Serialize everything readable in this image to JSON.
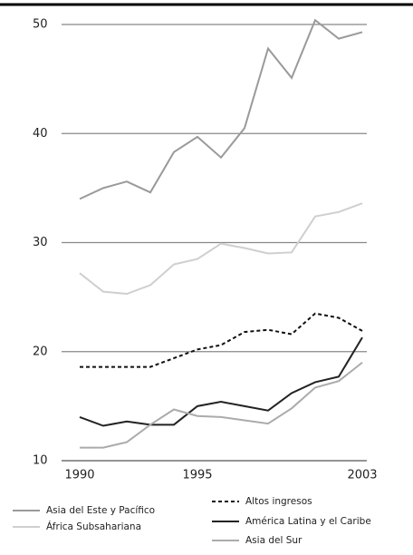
{
  "chart_data": {
    "type": "line",
    "categories": [
      "1990",
      null,
      null,
      null,
      null,
      "1995",
      null,
      null,
      null,
      null,
      null,
      null,
      "2003"
    ],
    "ylim": [
      10,
      50
    ],
    "yticks": [
      10,
      20,
      30,
      40,
      50
    ],
    "grid": true,
    "series": [
      {
        "name": "Asia del Este y Pacífico",
        "color": "#9a9a9a",
        "style": "solid",
        "values": [
          34.0,
          35.0,
          35.6,
          34.6,
          38.3,
          39.7,
          37.8,
          40.5,
          47.8,
          45.1,
          50.4,
          48.7,
          49.3
        ]
      },
      {
        "name": "África Subsahariana",
        "color": "#cfcfcf",
        "style": "solid",
        "values": [
          27.2,
          25.5,
          25.3,
          26.1,
          28.0,
          28.5,
          29.9,
          29.5,
          29.0,
          29.1,
          32.4,
          32.8,
          33.6
        ]
      },
      {
        "name": "Altos ingresos",
        "color": "#111111",
        "style": "dashed",
        "values": [
          18.6,
          18.6,
          18.6,
          18.6,
          19.4,
          20.2,
          20.6,
          21.8,
          22.0,
          21.6,
          23.5,
          23.1,
          21.9
        ]
      },
      {
        "name": "América Latina  y el Caribe",
        "color": "#222222",
        "style": "solid",
        "values": [
          14.0,
          13.2,
          13.6,
          13.3,
          13.3,
          15.0,
          15.4,
          15.0,
          14.6,
          16.2,
          17.2,
          17.7,
          21.3
        ]
      },
      {
        "name": "Asia del Sur",
        "color": "#ababab",
        "style": "solid",
        "values": [
          11.2,
          11.2,
          11.7,
          13.3,
          14.7,
          14.1,
          14.0,
          13.7,
          13.4,
          14.8,
          16.7,
          17.3,
          19.0
        ]
      }
    ]
  }
}
